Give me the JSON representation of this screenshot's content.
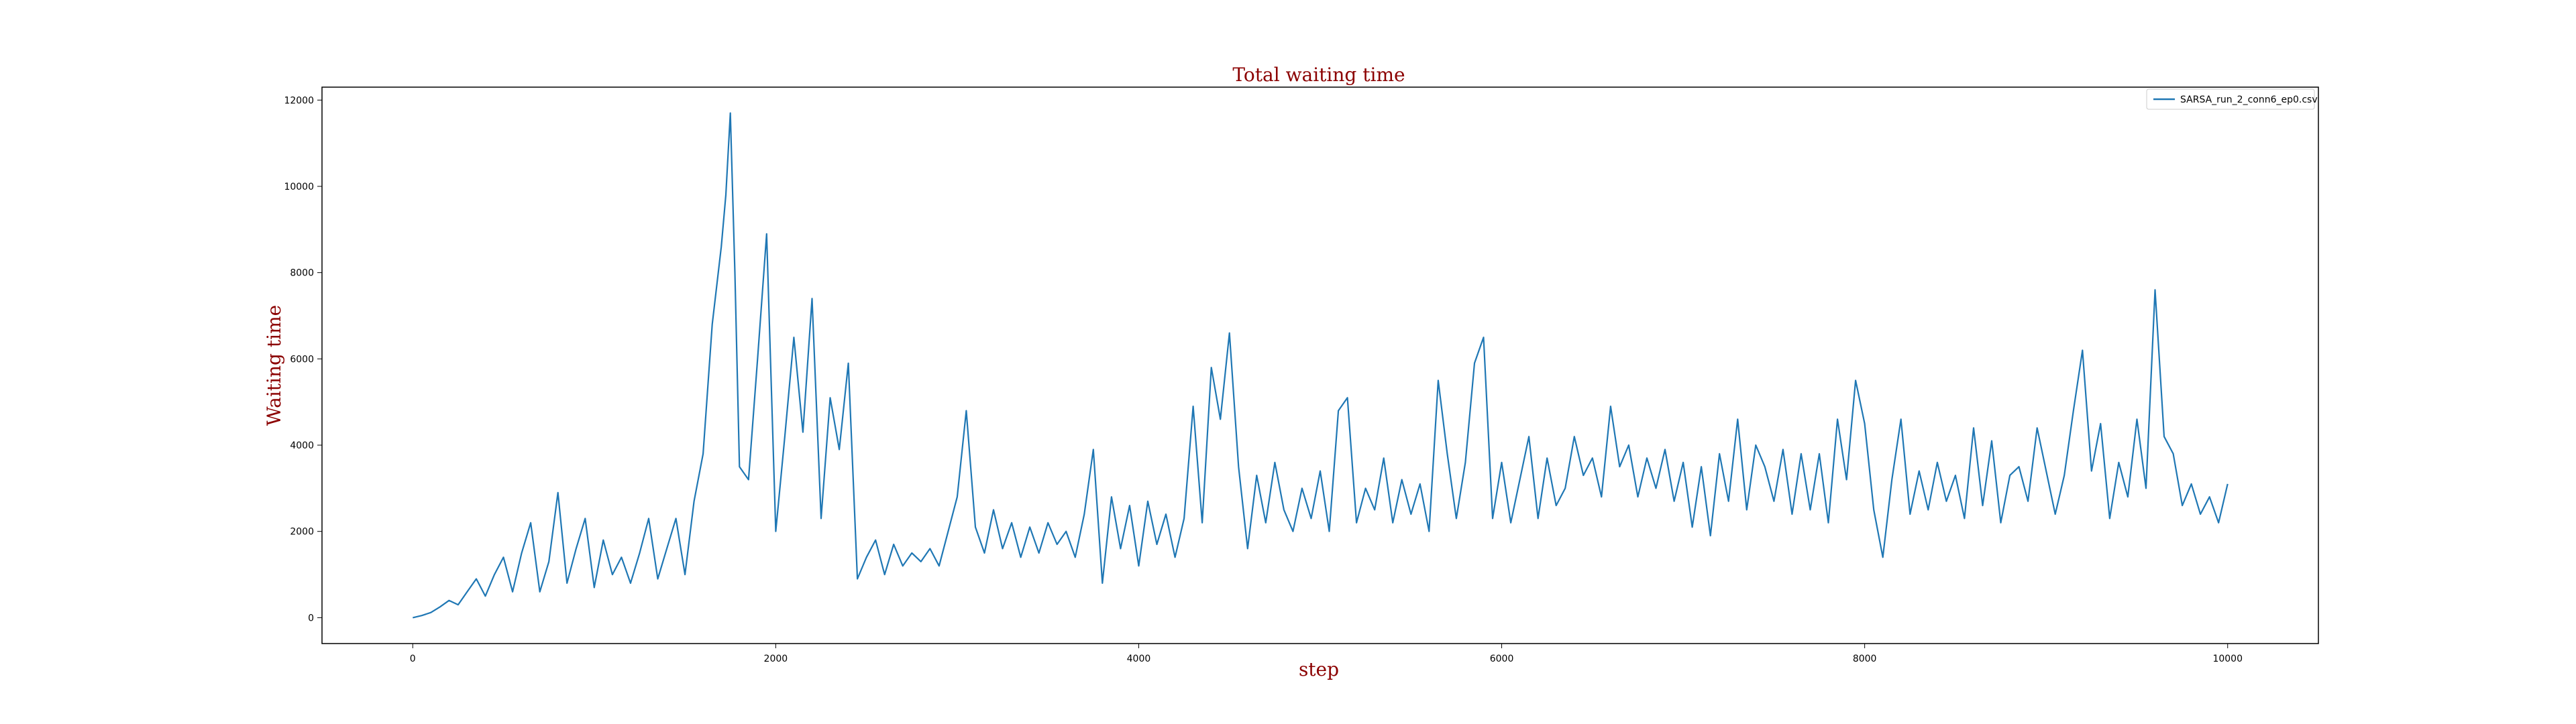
{
  "chart_data": {
    "type": "line",
    "title": "Total waiting time",
    "xlabel": "step",
    "ylabel": "Waiting time",
    "xlim": [
      -500,
      10500
    ],
    "ylim": [
      -600,
      12300
    ],
    "xticks": [
      0,
      2000,
      4000,
      6000,
      8000,
      10000
    ],
    "yticks": [
      0,
      2000,
      4000,
      6000,
      8000,
      10000,
      12000
    ],
    "grid": false,
    "legend_position": "top-right",
    "series": [
      {
        "name": "SARSA_run_2_conn6_ep0.csv",
        "color": "#1f77b4",
        "x": [
          0,
          50,
          100,
          150,
          200,
          250,
          300,
          350,
          400,
          450,
          500,
          550,
          600,
          650,
          700,
          750,
          800,
          850,
          900,
          950,
          1000,
          1050,
          1100,
          1150,
          1200,
          1250,
          1300,
          1350,
          1400,
          1450,
          1500,
          1550,
          1600,
          1650,
          1700,
          1725,
          1750,
          1775,
          1800,
          1850,
          1900,
          1950,
          2000,
          2050,
          2100,
          2150,
          2200,
          2250,
          2300,
          2350,
          2400,
          2450,
          2500,
          2550,
          2600,
          2650,
          2700,
          2750,
          2800,
          2850,
          2900,
          2950,
          3000,
          3050,
          3100,
          3150,
          3200,
          3250,
          3300,
          3350,
          3400,
          3450,
          3500,
          3550,
          3600,
          3650,
          3700,
          3750,
          3800,
          3850,
          3900,
          3950,
          4000,
          4050,
          4100,
          4150,
          4200,
          4250,
          4300,
          4350,
          4400,
          4450,
          4500,
          4550,
          4600,
          4650,
          4700,
          4750,
          4800,
          4850,
          4900,
          4950,
          5000,
          5050,
          5100,
          5150,
          5200,
          5250,
          5300,
          5350,
          5400,
          5450,
          5500,
          5550,
          5600,
          5650,
          5700,
          5750,
          5800,
          5850,
          5900,
          5950,
          6000,
          6050,
          6100,
          6150,
          6200,
          6250,
          6300,
          6350,
          6400,
          6450,
          6500,
          6550,
          6600,
          6650,
          6700,
          6750,
          6800,
          6850,
          6900,
          6950,
          7000,
          7050,
          7100,
          7150,
          7200,
          7250,
          7300,
          7350,
          7400,
          7450,
          7500,
          7550,
          7600,
          7650,
          7700,
          7750,
          7800,
          7850,
          7900,
          7950,
          8000,
          8050,
          8100,
          8150,
          8200,
          8250,
          8300,
          8350,
          8400,
          8450,
          8500,
          8550,
          8600,
          8650,
          8700,
          8750,
          8800,
          8850,
          8900,
          8950,
          9000,
          9050,
          9100,
          9150,
          9200,
          9250,
          9300,
          9350,
          9400,
          9450,
          9500,
          9550,
          9600,
          9650,
          9700,
          9750,
          9800,
          9850,
          9900,
          9950,
          10000
        ],
        "y": [
          0,
          50,
          120,
          250,
          400,
          300,
          600,
          900,
          500,
          1000,
          1400,
          600,
          1500,
          2200,
          600,
          1300,
          2900,
          800,
          1600,
          2300,
          700,
          1800,
          1000,
          1400,
          800,
          1500,
          2300,
          900,
          1600,
          2300,
          1000,
          2700,
          3800,
          6800,
          8600,
          9800,
          11700,
          8000,
          3500,
          3200,
          6000,
          8900,
          2000,
          4200,
          6500,
          4300,
          7400,
          2300,
          5100,
          3900,
          5900,
          900,
          1400,
          1800,
          1000,
          1700,
          1200,
          1500,
          1300,
          1600,
          1200,
          2000,
          2800,
          4800,
          2100,
          1500,
          2500,
          1600,
          2200,
          1400,
          2100,
          1500,
          2200,
          1700,
          2000,
          1400,
          2400,
          3900,
          800,
          2800,
          1600,
          2600,
          1200,
          2700,
          1700,
          2400,
          1400,
          2300,
          4900,
          2200,
          5800,
          4600,
          6600,
          3500,
          1600,
          3300,
          2200,
          3600,
          2500,
          2000,
          3000,
          2300,
          3400,
          2000,
          4800,
          5100,
          2200,
          3000,
          2500,
          3700,
          2200,
          3200,
          2400,
          3100,
          2000,
          5500,
          3800,
          2300,
          3600,
          5900,
          6500,
          2300,
          3600,
          2200,
          3200,
          4200,
          2300,
          3700,
          2600,
          3000,
          4200,
          3300,
          3700,
          2800,
          4900,
          3500,
          4000,
          2800,
          3700,
          3000,
          3900,
          2700,
          3600,
          2100,
          3500,
          1900,
          3800,
          2700,
          4600,
          2500,
          4000,
          3500,
          2700,
          3900,
          2400,
          3800,
          2500,
          3800,
          2200,
          4600,
          3200,
          5500,
          4500,
          2500,
          1400,
          3200,
          4600,
          2400,
          3400,
          2500,
          3600,
          2700,
          3300,
          2300,
          4400,
          2600,
          4100,
          2200,
          3300,
          3500,
          2700,
          4400,
          3400,
          2400,
          3300,
          4800,
          6200,
          3400,
          4500,
          2300,
          3600,
          2800,
          4600,
          3000,
          7600,
          4200,
          3800,
          2600,
          3100,
          2400,
          2800,
          2200,
          3100
        ]
      }
    ]
  }
}
